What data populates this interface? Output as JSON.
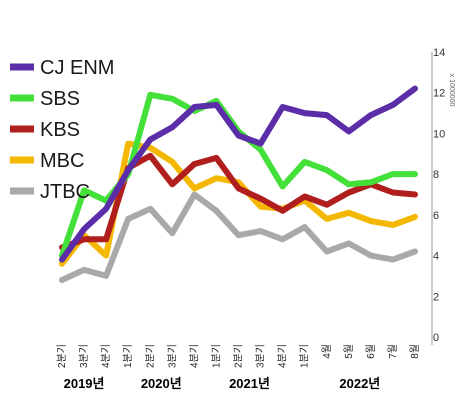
{
  "chart_data": {
    "type": "line",
    "title": "",
    "xlabel": "",
    "ylabel": "",
    "unit_label": "x 1000000",
    "ylim": [
      0,
      14
    ],
    "yticks": [
      0,
      2,
      4,
      6,
      8,
      10,
      12,
      14
    ],
    "y_axis_position": "right",
    "grid": false,
    "legend_position": "top-left",
    "categories": [
      "2분기",
      "3분기",
      "4분기",
      "1분기",
      "2분기",
      "3분기",
      "4분기",
      "1분기",
      "2분기",
      "3분기",
      "4분기",
      "1분기",
      "4월",
      "5월",
      "6월",
      "7월",
      "8월"
    ],
    "year_labels": [
      {
        "label": "2019년",
        "start": 0,
        "end": 2
      },
      {
        "label": "2020년",
        "start": 3,
        "end": 6
      },
      {
        "label": "2021년",
        "start": 7,
        "end": 10
      },
      {
        "label": "2022년",
        "start": 11,
        "end": 16
      }
    ],
    "series": [
      {
        "name": "CJ ENM",
        "color": "#5B2DA8",
        "values": [
          3.8,
          5.3,
          6.3,
          8.2,
          9.7,
          10.3,
          11.3,
          11.4,
          9.9,
          9.5,
          11.3,
          11.0,
          10.9,
          10.1,
          10.9,
          11.4,
          12.2
        ]
      },
      {
        "name": "SBS",
        "color": "#44E03A",
        "values": [
          4.0,
          7.2,
          6.7,
          8.0,
          11.9,
          11.7,
          11.1,
          11.6,
          10.1,
          9.2,
          7.4,
          8.6,
          8.2,
          7.5,
          7.6,
          8.0,
          8.0
        ]
      },
      {
        "name": "KBS",
        "color": "#B01E1E",
        "values": [
          4.4,
          4.8,
          4.8,
          8.3,
          8.9,
          7.5,
          8.5,
          8.8,
          7.3,
          6.8,
          6.2,
          6.9,
          6.5,
          7.1,
          7.5,
          7.1,
          7.0
        ]
      },
      {
        "name": "MBC",
        "color": "#F5B800",
        "values": [
          3.6,
          5.0,
          4.0,
          9.5,
          9.3,
          8.6,
          7.3,
          7.8,
          7.6,
          6.4,
          6.3,
          6.7,
          5.8,
          6.1,
          5.7,
          5.5,
          5.9
        ]
      },
      {
        "name": "JTBC",
        "color": "#A9A9A9",
        "values": [
          2.8,
          3.3,
          3.0,
          5.8,
          6.3,
          5.1,
          7.0,
          6.2,
          5.0,
          5.2,
          4.8,
          5.4,
          4.2,
          4.6,
          4.0,
          3.8,
          4.2
        ]
      }
    ]
  }
}
